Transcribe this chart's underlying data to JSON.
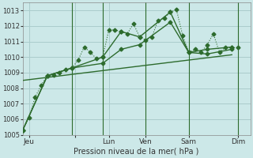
{
  "bg_color": "#cce8e8",
  "grid_color": "#aacccc",
  "line_color": "#2d6b2d",
  "xlabel": "Pression niveau de la mer( hPa )",
  "ylim": [
    1005,
    1013.5
  ],
  "yticks": [
    1005,
    1006,
    1007,
    1008,
    1009,
    1010,
    1011,
    1012,
    1013
  ],
  "xlim": [
    0,
    37
  ],
  "x_ticks_pos": [
    1,
    8.5,
    14,
    20,
    27,
    35
  ],
  "x_tick_labels": [
    "Jeu",
    "",
    "Lun",
    "Ven",
    "Sam",
    "Dim"
  ],
  "series1": {
    "x": [
      0,
      1,
      2,
      3,
      4,
      5,
      6,
      7,
      8,
      9,
      10,
      11,
      12,
      13,
      14,
      15,
      16,
      17,
      18,
      19,
      20,
      21,
      22,
      23,
      24,
      25,
      26,
      27,
      28,
      29,
      30,
      31,
      32,
      33,
      34,
      35
    ],
    "y": [
      1005.3,
      1006.1,
      1007.4,
      1008.2,
      1008.8,
      1008.85,
      1009.0,
      1009.2,
      1009.3,
      1009.8,
      1010.65,
      1010.3,
      1009.9,
      1010.0,
      1011.75,
      1011.75,
      1011.65,
      1011.5,
      1012.15,
      1011.3,
      1011.1,
      1011.3,
      1012.35,
      1012.5,
      1012.9,
      1013.05,
      1011.4,
      1010.3,
      1010.5,
      1010.3,
      1010.8,
      1011.5,
      1010.3,
      1010.65,
      1010.6,
      1010.6
    ],
    "style": "dotted",
    "markersize": 2.5
  },
  "series2": {
    "x": [
      0,
      4,
      8,
      13,
      16,
      19,
      24,
      27,
      30,
      34
    ],
    "y": [
      1005.3,
      1008.8,
      1009.3,
      1010.0,
      1011.65,
      1011.3,
      1012.9,
      1010.3,
      1010.5,
      1010.65
    ],
    "style": "solid",
    "markersize": 2.5
  },
  "series3": {
    "x": [
      0,
      4,
      8,
      13,
      16,
      19,
      24,
      27,
      30,
      34
    ],
    "y": [
      1005.3,
      1008.8,
      1009.3,
      1009.6,
      1010.5,
      1010.8,
      1012.25,
      1010.3,
      1010.2,
      1010.5
    ],
    "style": "solid",
    "markersize": 2.5
  },
  "series4": {
    "x": [
      0,
      34
    ],
    "y": [
      1008.5,
      1010.15
    ],
    "style": "solid",
    "markersize": 0
  },
  "vlines_x": [
    8,
    13,
    20,
    27,
    35
  ]
}
